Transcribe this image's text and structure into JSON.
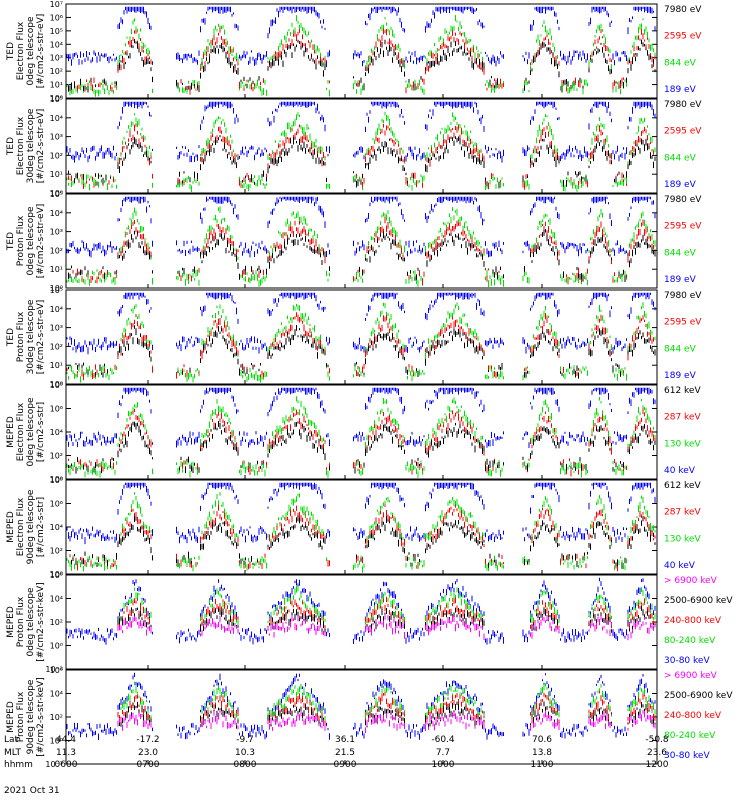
{
  "colors": {
    "blue": "#0000ff",
    "red": "#ff0000",
    "green": "#00e000",
    "black": "#000000",
    "magenta": "#ff00ff"
  },
  "chart_data": {
    "type": "line",
    "ticks": {
      "e8": [
        "10⁰",
        "10¹",
        "10²",
        "10³",
        "10⁴",
        "10⁵",
        "10⁶",
        "10⁷"
      ],
      "p5": [
        "10⁰",
        "10¹",
        "10²",
        "10³",
        "10⁴",
        "10⁵"
      ],
      "ev6": [
        "10⁰",
        "10²",
        "10⁴",
        "10⁶",
        "10⁸"
      ],
      "pp": [
        "10⁻²",
        "10⁰",
        "10²",
        "10⁴",
        "10⁶"
      ]
    },
    "panels": [
      {
        "ylabel": [
          "TED",
          "Electron Flux",
          "0deg telescope",
          "[#/cm2-s-str-eV]"
        ],
        "ylim": [
          1,
          10000000
        ],
        "yticks": "e8",
        "series": [
          {
            "name": "7980 eV",
            "color": "black"
          },
          {
            "name": "2595 eV",
            "color": "red"
          },
          {
            "name": "844 eV",
            "color": "green"
          },
          {
            "name": "189 eV",
            "color": "blue"
          }
        ]
      },
      {
        "ylabel": [
          "TED",
          "Electron Flux",
          "30deg telescope",
          "[#/cm2-s-str-eV]"
        ],
        "ylim": [
          1,
          100000
        ],
        "yticks": "p5",
        "series": [
          {
            "name": "7980 eV",
            "color": "black"
          },
          {
            "name": "2595 eV",
            "color": "red"
          },
          {
            "name": "844 eV",
            "color": "green"
          },
          {
            "name": "189 eV",
            "color": "blue"
          }
        ]
      },
      {
        "ylabel": [
          "TED",
          "Proton Flux",
          "0deg telescope",
          "[#/cm2-s-str-eV]"
        ],
        "ylim": [
          1,
          100000
        ],
        "yticks": "p5",
        "series": [
          {
            "name": "7980 eV",
            "color": "black"
          },
          {
            "name": "2595 eV",
            "color": "red"
          },
          {
            "name": "844 eV",
            "color": "green"
          },
          {
            "name": "189 eV",
            "color": "blue"
          }
        ]
      },
      {
        "ylabel": [
          "TED",
          "Proton Flux",
          "30deg telescope",
          "[#/cm2-s-str-eV]"
        ],
        "ylim": [
          1,
          100000
        ],
        "yticks": "p5",
        "series": [
          {
            "name": "7980 eV",
            "color": "black"
          },
          {
            "name": "2595 eV",
            "color": "red"
          },
          {
            "name": "844 eV",
            "color": "green"
          },
          {
            "name": "189 eV",
            "color": "blue"
          }
        ]
      },
      {
        "ylabel": [
          "MEPED",
          "Electron Flux",
          "0deg telescope",
          "[#/cm2-s-str]"
        ],
        "ylim": [
          1,
          100000000
        ],
        "yticks": "ev6",
        "series": [
          {
            "name": "612 keV",
            "color": "black"
          },
          {
            "name": "287 keV",
            "color": "red"
          },
          {
            "name": "130 keV",
            "color": "green"
          },
          {
            "name": "40 keV",
            "color": "blue"
          }
        ]
      },
      {
        "ylabel": [
          "MEPED",
          "Electron Flux",
          "90deg telescope",
          "[#/cm2-s-str]"
        ],
        "ylim": [
          1,
          100000000
        ],
        "yticks": "ev6",
        "series": [
          {
            "name": "612 keV",
            "color": "black"
          },
          {
            "name": "287 keV",
            "color": "red"
          },
          {
            "name": "130 keV",
            "color": "green"
          },
          {
            "name": "40 keV",
            "color": "blue"
          }
        ]
      },
      {
        "ylabel": [
          "MEPED",
          "Proton Flux",
          "0deg telescope",
          "[#/cm2-s-str-keV]"
        ],
        "ylim": [
          0.01,
          1000000
        ],
        "yticks": "pp",
        "series": [
          {
            "name": "> 6900 keV",
            "color": "magenta"
          },
          {
            "name": "2500-6900 keV",
            "color": "black"
          },
          {
            "name": "240-800 keV",
            "color": "red"
          },
          {
            "name": "80-240 keV",
            "color": "green"
          },
          {
            "name": "30-80 keV",
            "color": "blue"
          }
        ]
      },
      {
        "ylabel": [
          "MEPED",
          "Proton Flux",
          "90deg telescope",
          "[#/cm2-s-str-keV]"
        ],
        "ylim": [
          0.01,
          1000000
        ],
        "yticks": "pp",
        "series": [
          {
            "name": "> 6900 keV",
            "color": "magenta"
          },
          {
            "name": "2500-6900 keV",
            "color": "black"
          },
          {
            "name": "240-800 keV",
            "color": "red"
          },
          {
            "name": "80-240 keV",
            "color": "green"
          },
          {
            "name": "30-80 keV",
            "color": "blue"
          }
        ]
      }
    ],
    "x_axis": {
      "row_labels": [
        "Lat",
        "MLT",
        "hhmm",
        "2021 Oct 31"
      ],
      "ticks": [
        {
          "lat": "44.4",
          "mlt": "11.3",
          "hhmm": "0600"
        },
        {
          "lat": "-17.2",
          "mlt": "23.0",
          "hhmm": "0700"
        },
        {
          "lat": "-9.7",
          "mlt": "10.3",
          "hhmm": "0800"
        },
        {
          "lat": "36.1",
          "mlt": "21.5",
          "hhmm": "0900"
        },
        {
          "lat": "-60.4",
          "mlt": "7.7",
          "hhmm": "1000"
        },
        {
          "lat": "70.6",
          "mlt": "13.8",
          "hhmm": "1100"
        },
        {
          "lat": "-50.8",
          "mlt": "23.6",
          "hhmm": "1200"
        }
      ]
    }
  }
}
